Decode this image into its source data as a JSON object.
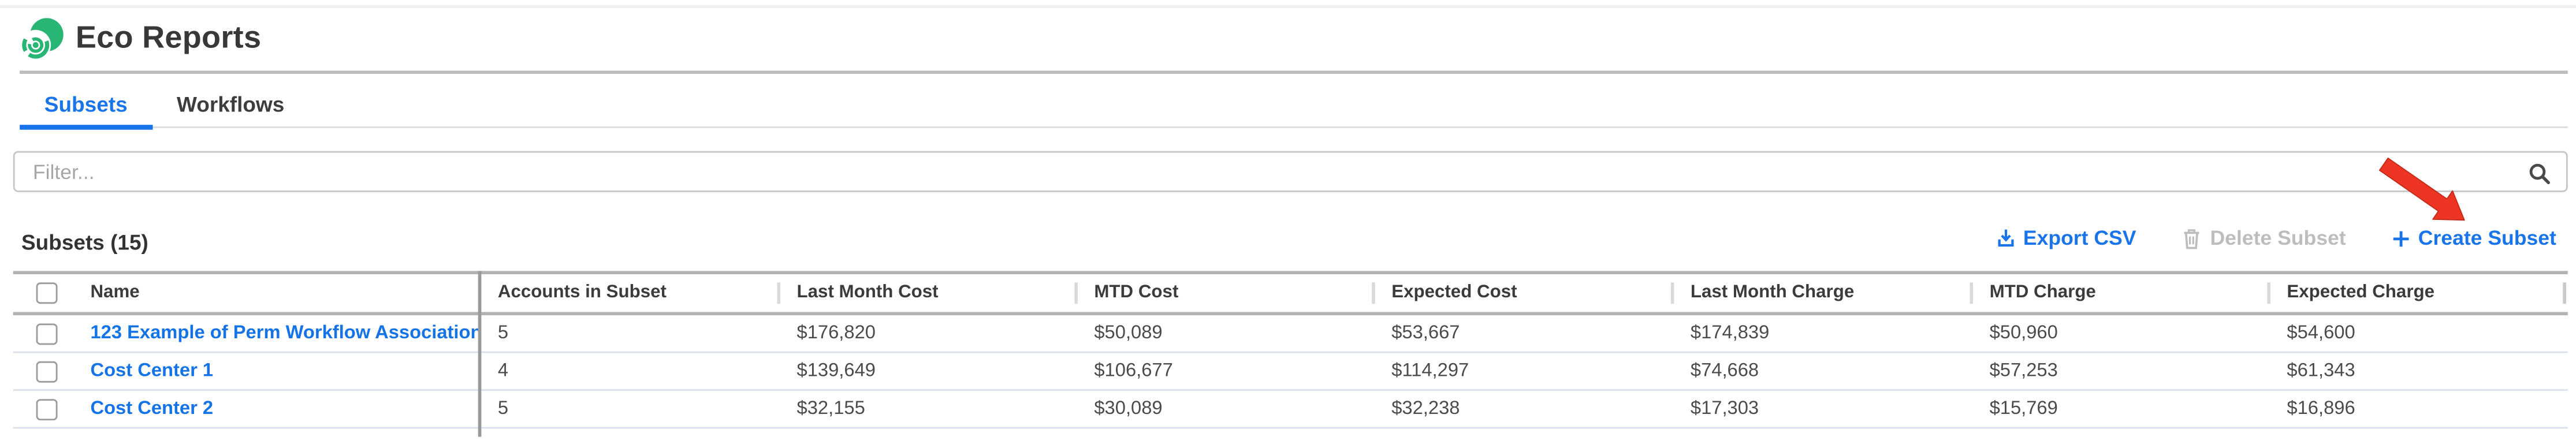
{
  "header": {
    "title": "Eco Reports"
  },
  "tabs": [
    {
      "label": "Subsets",
      "active": true
    },
    {
      "label": "Workflows",
      "active": false
    }
  ],
  "filter": {
    "placeholder": "Filter...",
    "value": ""
  },
  "section": {
    "title": "Subsets (15)"
  },
  "toolbar": {
    "export_label": "Export CSV",
    "delete_label": "Delete Subset",
    "create_label": "Create Subset"
  },
  "table": {
    "columns": [
      "Name",
      "Accounts in Subset",
      "Last Month Cost",
      "MTD Cost",
      "Expected Cost",
      "Last Month Charge",
      "MTD Charge",
      "Expected Charge"
    ],
    "rows": [
      {
        "cells": [
          "123 Example of Perm Workflow Association",
          "5",
          "$176,820",
          "$50,089",
          "$53,667",
          "$174,839",
          "$50,960",
          "$54,600"
        ]
      },
      {
        "cells": [
          "Cost Center 1",
          "4",
          "$139,649",
          "$106,677",
          "$114,297",
          "$74,668",
          "$57,253",
          "$61,343"
        ]
      },
      {
        "cells": [
          "Cost Center 2",
          "5",
          "$32,155",
          "$30,089",
          "$32,238",
          "$17,303",
          "$15,769",
          "$16,896"
        ]
      }
    ]
  },
  "icons": {
    "logo": "eco-spiral-logo",
    "search": "magnifier",
    "export": "download-tray",
    "delete": "trash-can",
    "create": "plus",
    "annotation": "red-arrow-pointing-to-create-subset"
  },
  "colors": {
    "accent_blue": "#1874e8",
    "link_blue": "#1473e6",
    "disabled_gray": "#bdbdbd",
    "logo_green": "#29b573",
    "arrow_red": "#ee3524",
    "table_border_dark": "#b2b2b2",
    "row_border": "#dce0ea"
  }
}
